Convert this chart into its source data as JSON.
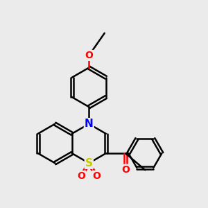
{
  "background_color": "#ebebeb",
  "bond_color": "#000000",
  "atom_colors": {
    "S": "#c8c800",
    "N": "#0000ff",
    "O": "#ff0000",
    "C": "#000000"
  },
  "bond_width": 1.8,
  "dbo": 0.055,
  "font_size_S": 11,
  "font_size_N": 11,
  "font_size_O": 10,
  "fig_size": [
    3.0,
    3.0
  ],
  "dpi": 100
}
